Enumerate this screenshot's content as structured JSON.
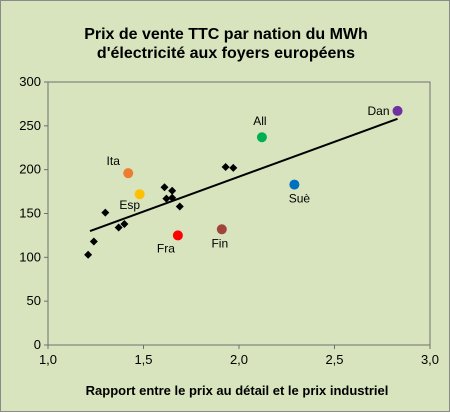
{
  "chart_data": {
    "type": "scatter",
    "title_lines": [
      "Prix de vente TTC  par nation du MWh",
      "d'électricité aux foyers européens"
    ],
    "xlabel": "Rapport entre le prix au détail et le prix industriel",
    "ylabel": "",
    "xlim": [
      1.0,
      3.0
    ],
    "ylim": [
      0,
      300
    ],
    "x_ticks": [
      "1,0",
      "1,5",
      "2,0",
      "2,5",
      "3,0"
    ],
    "y_ticks": [
      "0",
      "50",
      "100",
      "150",
      "200",
      "250",
      "300"
    ],
    "grid": false,
    "series": [
      {
        "marker": "diamond",
        "color": "#000000",
        "points": [
          {
            "x": 1.21,
            "y": 103
          },
          {
            "x": 1.24,
            "y": 118
          },
          {
            "x": 1.3,
            "y": 151
          },
          {
            "x": 1.37,
            "y": 134
          },
          {
            "x": 1.4,
            "y": 138
          },
          {
            "x": 1.61,
            "y": 180
          },
          {
            "x": 1.62,
            "y": 167
          },
          {
            "x": 1.65,
            "y": 176
          },
          {
            "x": 1.65,
            "y": 168
          },
          {
            "x": 1.69,
            "y": 158
          },
          {
            "x": 1.93,
            "y": 203
          },
          {
            "x": 1.97,
            "y": 202
          }
        ]
      },
      {
        "marker": "circle",
        "labeled_points": [
          {
            "label": "Ita",
            "x": 1.42,
            "y": 196,
            "color": "#ed7d31"
          },
          {
            "label": "Esp",
            "x": 1.48,
            "y": 172,
            "color": "#ffc000"
          },
          {
            "label": "Fra",
            "x": 1.68,
            "y": 125,
            "color": "#ff0000"
          },
          {
            "label": "Fin",
            "x": 1.91,
            "y": 132,
            "color": "#a0453c"
          },
          {
            "label": "All",
            "x": 2.12,
            "y": 237,
            "color": "#00b050"
          },
          {
            "label": "Suè",
            "x": 2.29,
            "y": 183,
            "color": "#0070c0"
          },
          {
            "label": "Dan",
            "x": 2.83,
            "y": 267,
            "color": "#7030a0"
          }
        ]
      }
    ],
    "trendline": {
      "x": [
        1.22,
        2.83
      ],
      "y": [
        130,
        258
      ]
    }
  }
}
